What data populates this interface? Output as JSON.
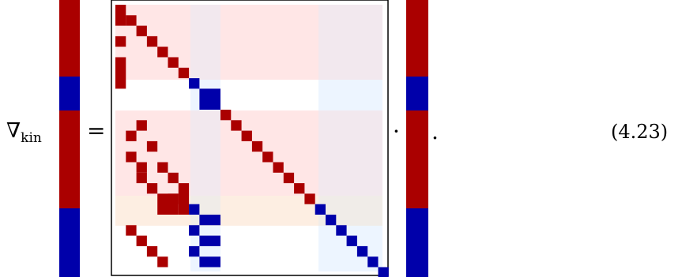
{
  "equation": {
    "lhs_symbol": "∇",
    "lhs_subscript": "kin",
    "equals": "=",
    "operator": "·",
    "terminator": ".",
    "number": "(4.23)"
  },
  "colors": {
    "red_block": "#aa0000",
    "blue_block": "#0000aa",
    "red_shade": "#ffe6e6",
    "blue_shade": "#e8f2ff",
    "orange_shade": "#fdeee2",
    "grey_shade": "#f2e8ee",
    "frame": "#000000"
  },
  "vectors": {
    "segments": [
      "red",
      "blue",
      "red",
      "blue"
    ]
  }
}
